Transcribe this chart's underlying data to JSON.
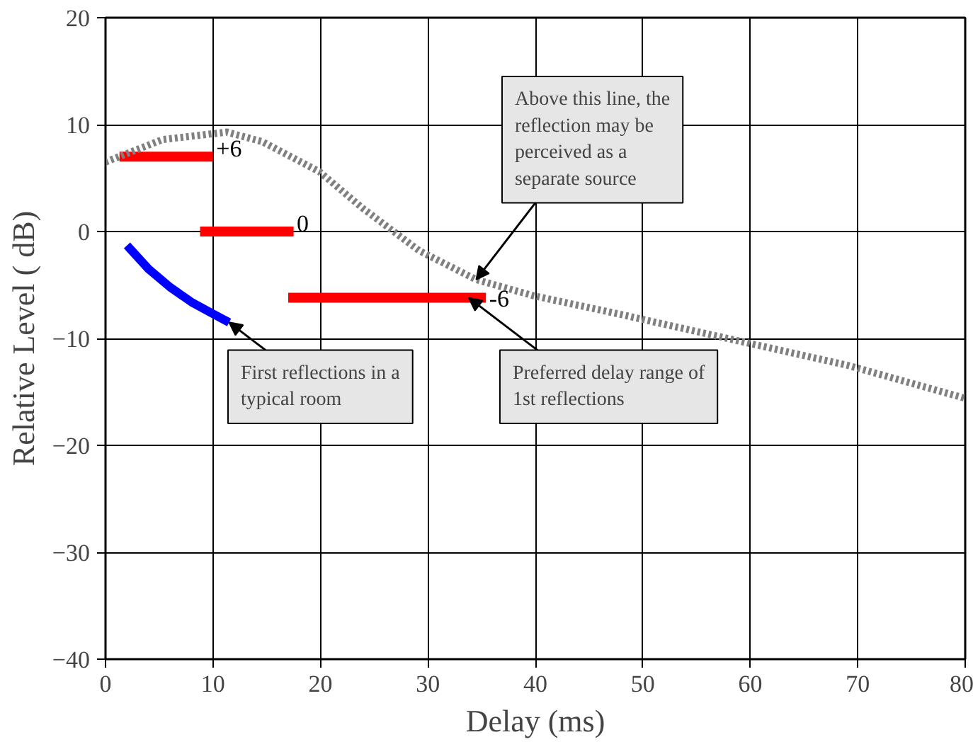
{
  "chart_data": {
    "type": "line",
    "xlabel": "Delay (ms)",
    "ylabel": "Relative Level ( dB)",
    "xlim": [
      0,
      80
    ],
    "ylim": [
      -40,
      20
    ],
    "xticks": [
      0,
      10,
      20,
      30,
      40,
      50,
      60,
      70,
      80
    ],
    "yticks": [
      -40,
      -30,
      -20,
      -10,
      0,
      10,
      20
    ],
    "grid": true,
    "marker": "none",
    "series": [
      {
        "color": "#ff0000",
        "x": [
          1.3,
          10
        ],
        "values": [
          7,
          7
        ],
        "line_style": "solid"
      },
      {
        "color": "#ff0000",
        "x": [
          8.8,
          17.5
        ],
        "values": [
          0,
          0
        ],
        "line_style": "solid"
      },
      {
        "color": "#ff0000",
        "x": [
          17,
          35.4
        ],
        "values": [
          -6.2,
          -6.2
        ],
        "line_style": "solid"
      },
      {
        "color": "#0000ff",
        "x": [
          2,
          4,
          6,
          8,
          10,
          11.5
        ],
        "values": [
          -1.3,
          -3.5,
          -5.2,
          -6.6,
          -7.7,
          -8.5
        ],
        "line_style": "solid"
      },
      {
        "color": "#808080",
        "x": [
          0,
          5.3,
          11.3,
          14.6,
          19.9,
          23.9,
          29.2,
          34.5,
          39.8,
          47.7,
          57,
          69,
          80
        ],
        "values": [
          6.5,
          8.6,
          9.3,
          8.4,
          5.6,
          2.2,
          -1.8,
          -4.5,
          -6,
          -7.7,
          -9.8,
          -12.5,
          -15.6
        ],
        "line_style": "dotted"
      }
    ],
    "annotations": [
      {
        "text": "+6",
        "x": 10,
        "y": 7
      },
      {
        "text": "0",
        "x": 17.5,
        "y": 0
      },
      {
        "text": "-6",
        "x": 35.4,
        "y": -6.2
      },
      {
        "text": "Above this line, the reflection may be perceived as a separate source",
        "x": 34.5,
        "y": -4.5
      },
      {
        "text": "First reflections in a typical room",
        "x": 11.5,
        "y": -8.5
      },
      {
        "text": "Preferred delay range of 1st reflections",
        "x": 33.8,
        "y": -6.2
      }
    ]
  }
}
